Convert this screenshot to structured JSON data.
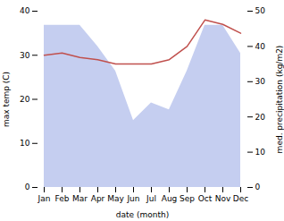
{
  "chart_data": {
    "type": "line",
    "categories": [
      "Jan",
      "Feb",
      "Mar",
      "Apr",
      "May",
      "Jun",
      "Jul",
      "Aug",
      "Sep",
      "Oct",
      "Nov",
      "Dec"
    ],
    "series": [
      {
        "type": "area",
        "color": "#c5cef0",
        "axis": "y2",
        "values": [
          46,
          46,
          46,
          40,
          33,
          19,
          24,
          22,
          33,
          46,
          46,
          38
        ]
      },
      {
        "type": "line",
        "color": "#c0504d",
        "values": [
          30.0,
          30.5,
          29.5,
          29.0,
          28.0,
          28.0,
          28.0,
          29.0,
          32.0,
          38.0,
          37.0,
          35.0
        ]
      }
    ],
    "xlabel": "date (month)",
    "ylabel": "max temp (C)",
    "y2label": "med. precipitation (kg/m2)",
    "ylim": [
      0,
      40
    ],
    "yticks": [
      0,
      10,
      20,
      30,
      40
    ],
    "y2lim": [
      0,
      50
    ],
    "y2ticks": [
      0,
      10,
      20,
      30,
      40,
      50
    ]
  }
}
